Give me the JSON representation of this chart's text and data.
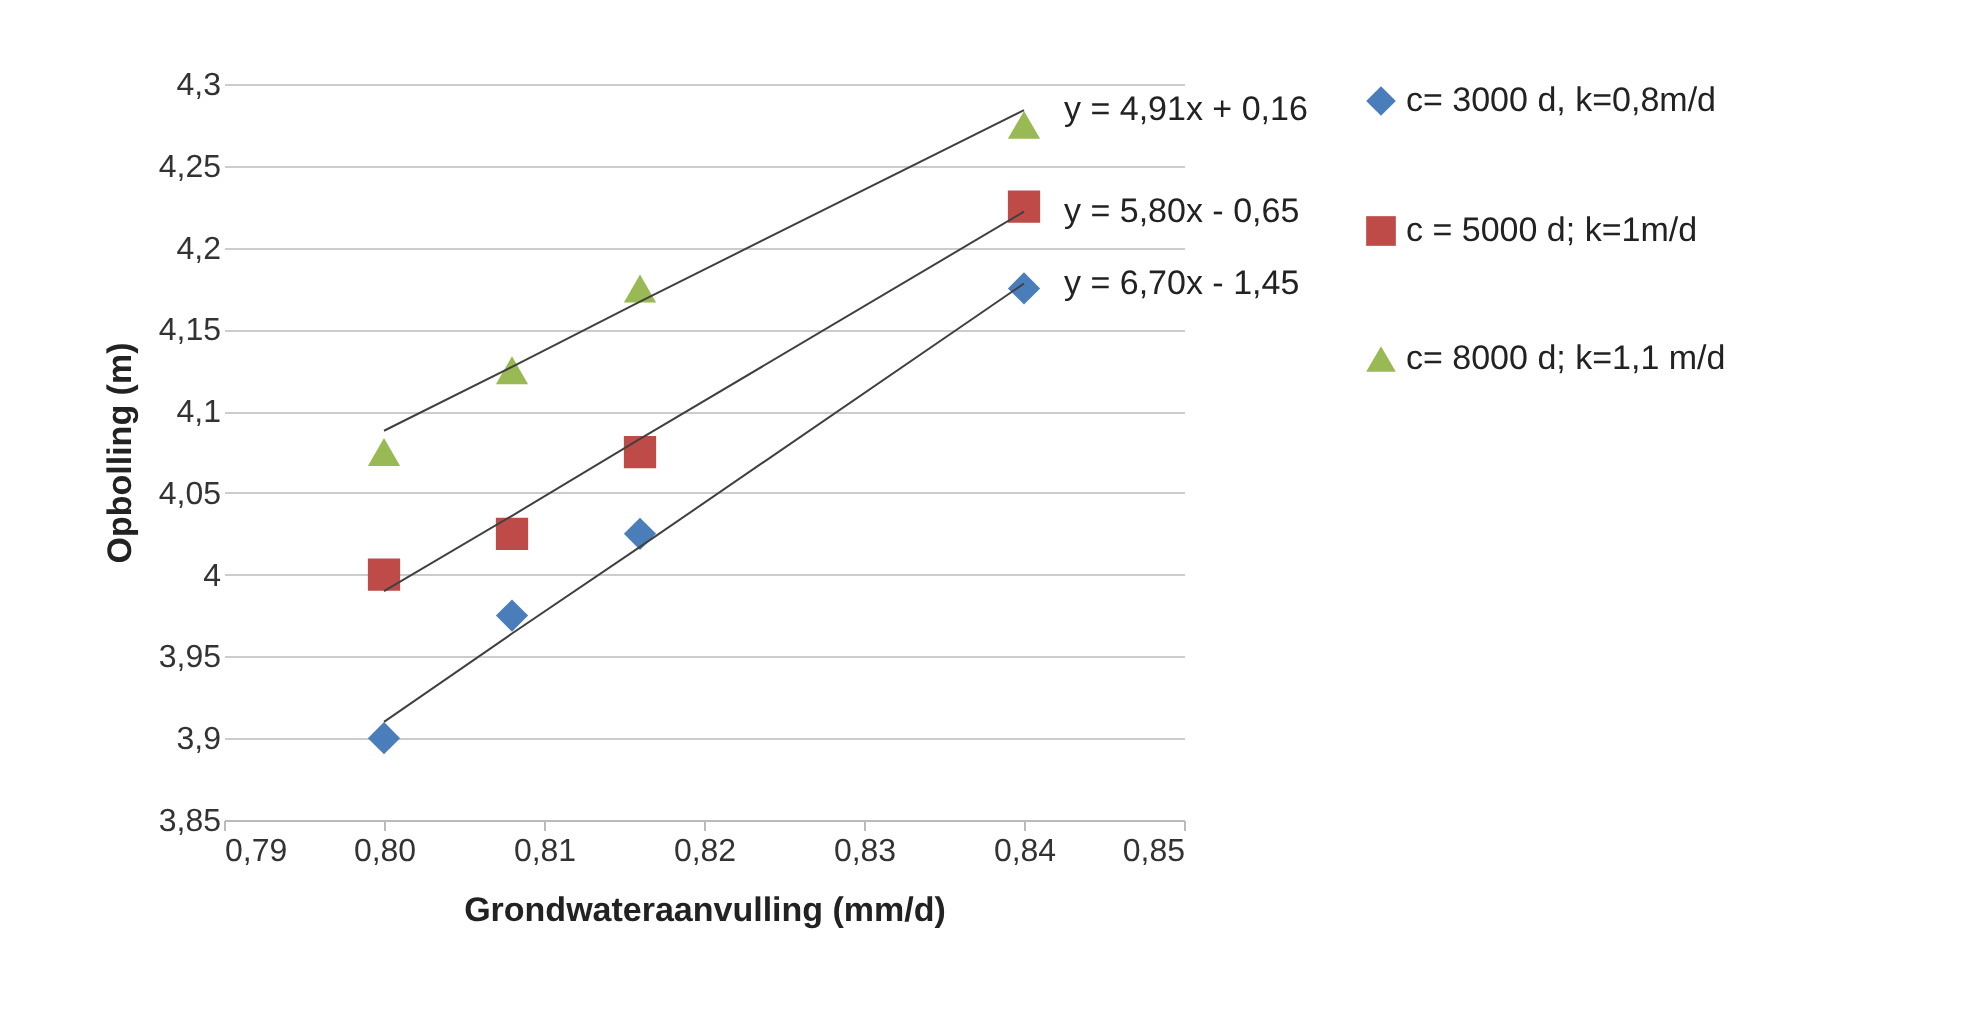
{
  "chart_data": {
    "type": "scatter",
    "xlabel": "Grondwateraanvulling (mm/d)",
    "ylabel": "Opbolling (m)",
    "x": [
      0.8,
      0.808,
      0.816,
      0.84
    ],
    "series": [
      {
        "name": "c= 3000 d, k=0,8m/d",
        "color": "#4a7ebb",
        "marker": "diamond",
        "values": [
          3.9,
          3.975,
          4.025,
          4.175
        ]
      },
      {
        "name": "c = 5000 d; k=1m/d",
        "color": "#be4b48",
        "marker": "square",
        "values": [
          4.0,
          4.025,
          4.075,
          4.225
        ]
      },
      {
        "name": "c= 8000 d; k=1,1 m/d",
        "color": "#98b954",
        "marker": "triangle",
        "values": [
          4.075,
          4.125,
          4.175,
          4.275
        ]
      },
      {
        "type": "line",
        "color": "#404040",
        "values": [
          3.91,
          3.964,
          4.017,
          4.178
        ]
      },
      {
        "type": "line",
        "color": "#404040",
        "values": [
          3.99,
          4.036,
          4.083,
          4.222
        ]
      },
      {
        "type": "line",
        "color": "#404040",
        "values": [
          4.088,
          4.127,
          4.167,
          4.284
        ]
      }
    ],
    "annotations": [
      "y = 6,70x - 1,45",
      "y = 5,80x - 0,65",
      "y = 4,91x + 0,16"
    ],
    "xlim": [
      0.79,
      0.85
    ],
    "xticks": [
      {
        "value": 0.79,
        "label": "0,79"
      },
      {
        "value": 0.8,
        "label": "0,80"
      },
      {
        "value": 0.81,
        "label": "0,81"
      },
      {
        "value": 0.82,
        "label": "0,82"
      },
      {
        "value": 0.83,
        "label": "0,83"
      },
      {
        "value": 0.84,
        "label": "0,84"
      },
      {
        "value": 0.85,
        "label": "0,85"
      }
    ],
    "ylim": [
      3.85,
      4.3
    ],
    "yticks": [
      {
        "value": 3.85,
        "label": "3,85"
      },
      {
        "value": 3.9,
        "label": "3,9"
      },
      {
        "value": 3.95,
        "label": "3,95"
      },
      {
        "value": 4,
        "label": "4"
      },
      {
        "value": 4.05,
        "label": "4,05"
      },
      {
        "value": 4.1,
        "label": "4,1"
      },
      {
        "value": 4.15,
        "label": "4,15"
      },
      {
        "value": 4.2,
        "label": "4,2"
      },
      {
        "value": 4.25,
        "label": "4,25"
      },
      {
        "value": 4.3,
        "label": "4,3"
      }
    ],
    "grid": "y",
    "legend": "right"
  }
}
